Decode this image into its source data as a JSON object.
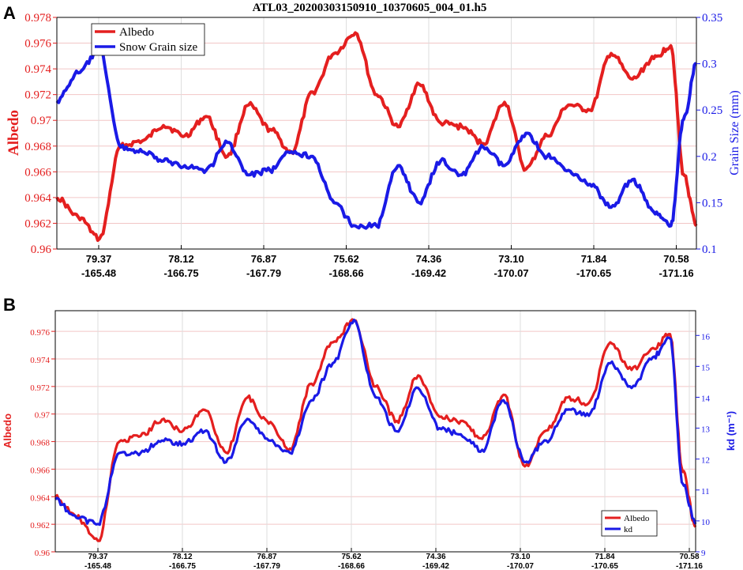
{
  "figure": {
    "panel_a_label": "A",
    "panel_b_label": "B",
    "title": "ATL03_20200303150910_10370605_004_01.h5"
  },
  "colors": {
    "albedo": "#e41f1f",
    "grain": "#1a1ae6",
    "kd": "#1a1ae6",
    "grid": "#f2c6c6"
  },
  "chart_data": [
    {
      "type": "line",
      "panel": "A",
      "title": "ATL03_20200303150910_10370605_004_01.h5",
      "ylabel_left": "Albedo",
      "ylabel_right": "Grain Size (mm)",
      "ylim_left": [
        0.96,
        0.978
      ],
      "ylim_right": [
        0.1,
        0.35
      ],
      "yticks_left": [
        "0.978",
        "0.976",
        "0.974",
        "0.972",
        "0.97",
        "0.968",
        "0.966",
        "0.964",
        "0.962",
        "0.96"
      ],
      "yticks_right": [
        "0.35",
        "0.3",
        "0.25",
        "0.2",
        "0.15",
        "0.1"
      ],
      "xticks_lat": [
        "79.37",
        "78.12",
        "76.87",
        "75.62",
        "74.36",
        "73.10",
        "71.84",
        "70.58"
      ],
      "xticks_lon": [
        "-165.48",
        "-166.75",
        "-167.79",
        "-168.66",
        "-169.42",
        "-170.07",
        "-170.65",
        "-171.16"
      ],
      "legend_placement": "top-left",
      "x": [
        0,
        0.25,
        0.5,
        0.75,
        1,
        1.25,
        1.5,
        1.75,
        2,
        2.25,
        2.5,
        2.75,
        3,
        3.25,
        3.5,
        3.75,
        4,
        4.25,
        4.5,
        4.75,
        5,
        5.25,
        5.5,
        5.75,
        6,
        6.25,
        6.5,
        6.75,
        7,
        7.2,
        7.35,
        7.5
      ],
      "series": [
        {
          "name": "Albedo",
          "axis": "left",
          "values": [
            0.964,
            0.9625,
            0.9608,
            0.968,
            0.9684,
            0.9696,
            0.9688,
            0.9703,
            0.9672,
            0.9712,
            0.9693,
            0.9675,
            0.9722,
            0.9752,
            0.9768,
            0.972,
            0.9695,
            0.9728,
            0.9698,
            0.9695,
            0.9682,
            0.9714,
            0.9662,
            0.9688,
            0.9712,
            0.9708,
            0.9752,
            0.9732,
            0.9748,
            0.9758,
            0.9658,
            0.9618
          ]
        },
        {
          "name": "Snow Grain size",
          "axis": "right",
          "values": [
            0.26,
            0.29,
            0.315,
            0.21,
            0.205,
            0.195,
            0.19,
            0.185,
            0.215,
            0.18,
            0.185,
            0.205,
            0.2,
            0.15,
            0.125,
            0.125,
            0.19,
            0.15,
            0.195,
            0.18,
            0.21,
            0.19,
            0.225,
            0.2,
            0.185,
            0.17,
            0.145,
            0.175,
            0.14,
            0.125,
            0.24,
            0.3
          ]
        }
      ]
    },
    {
      "type": "line",
      "panel": "B",
      "ylabel_left": "Albedo",
      "ylabel_right": "kd (m⁻¹)",
      "ylim_left": [
        0.96,
        0.9775
      ],
      "ylim_right": [
        9,
        16.8
      ],
      "yticks_left": [
        "0.976",
        "0.974",
        "0.972",
        "0.97",
        "0.968",
        "0.966",
        "0.964",
        "0.962",
        "0.96"
      ],
      "yticks_right": [
        "16",
        "15",
        "14",
        "13",
        "12",
        "11",
        "10",
        "9"
      ],
      "xticks_lat": [
        "79.37",
        "78.12",
        "76.87",
        "75.62",
        "74.36",
        "73.10",
        "71.84",
        "70.58"
      ],
      "xticks_lon": [
        "-165.48",
        "-166.75",
        "-167.79",
        "-168.66",
        "-169.42",
        "-170.07",
        "-170.65",
        "-171.16"
      ],
      "legend_placement": "bottom-right",
      "x": [
        0,
        0.25,
        0.5,
        0.75,
        1,
        1.25,
        1.5,
        1.75,
        2,
        2.25,
        2.5,
        2.75,
        3,
        3.25,
        3.5,
        3.75,
        4,
        4.25,
        4.5,
        4.75,
        5,
        5.25,
        5.5,
        5.75,
        6,
        6.25,
        6.5,
        6.75,
        7,
        7.2,
        7.35,
        7.5
      ],
      "series": [
        {
          "name": "Albedo",
          "axis": "left",
          "values": [
            0.964,
            0.9625,
            0.9608,
            0.968,
            0.9684,
            0.9696,
            0.9688,
            0.9703,
            0.9672,
            0.9712,
            0.9693,
            0.9675,
            0.9722,
            0.9752,
            0.9768,
            0.972,
            0.9695,
            0.9728,
            0.9698,
            0.9695,
            0.9682,
            0.9714,
            0.9662,
            0.9688,
            0.9712,
            0.9708,
            0.9752,
            0.9732,
            0.9748,
            0.9758,
            0.9658,
            0.9618
          ]
        },
        {
          "name": "kd",
          "axis": "right",
          "values": [
            10.7,
            10.1,
            9.9,
            12.2,
            12.2,
            12.6,
            12.5,
            12.9,
            11.9,
            13.3,
            12.6,
            12.2,
            13.9,
            15.1,
            16.5,
            14.0,
            12.9,
            14.3,
            13.0,
            12.8,
            12.3,
            13.9,
            11.9,
            12.6,
            13.6,
            13.4,
            15.1,
            14.3,
            15.3,
            15.9,
            11.2,
            9.9
          ]
        }
      ]
    }
  ]
}
